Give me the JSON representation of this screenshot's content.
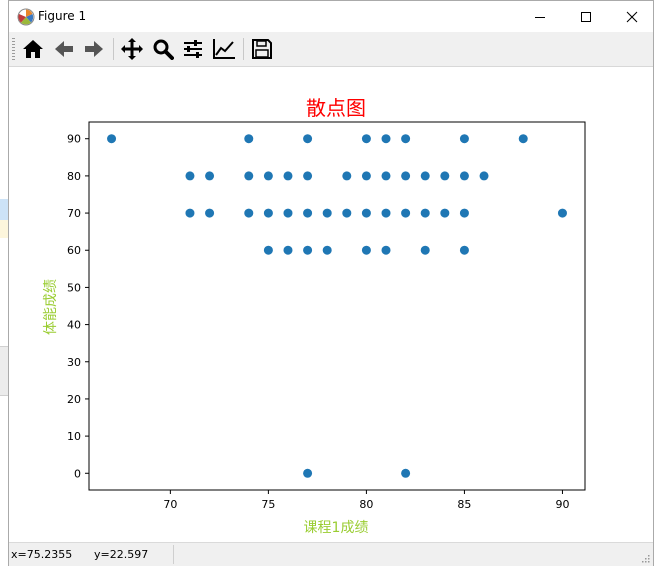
{
  "window": {
    "title": "Figure 1",
    "controls": {
      "minimize": "minimize",
      "maximize": "maximize",
      "close": "close"
    }
  },
  "toolbar": {
    "buttons": [
      {
        "name": "home",
        "icon": "home-icon"
      },
      {
        "name": "back",
        "icon": "arrow-left-icon"
      },
      {
        "name": "forward",
        "icon": "arrow-right-icon"
      },
      {
        "name": "pan",
        "icon": "move-icon"
      },
      {
        "name": "zoom",
        "icon": "magnifier-icon"
      },
      {
        "name": "configure-subplots",
        "icon": "sliders-icon"
      },
      {
        "name": "edit-axes",
        "icon": "line-chart-icon"
      },
      {
        "name": "save",
        "icon": "floppy-disk-icon"
      }
    ]
  },
  "statusbar": {
    "x_readout": "x=75.2355",
    "y_readout": "y=22.597"
  },
  "colors": {
    "title": "#ff0000",
    "axis_label": "#9acd32",
    "marker": "#1f77b4"
  },
  "chart_data": {
    "type": "scatter",
    "title": "散点图",
    "xlabel": "课程1成绩",
    "ylabel": "体能成绩",
    "xlim": [
      65.85,
      91.15
    ],
    "ylim": [
      -4.5,
      94.5
    ],
    "xticks": [
      "70",
      "75",
      "80",
      "85",
      "90"
    ],
    "yticks": [
      "0",
      "10",
      "20",
      "30",
      "40",
      "50",
      "60",
      "70",
      "80",
      "90"
    ],
    "grid": false,
    "series": [
      {
        "points": [
          [
            67,
            90
          ],
          [
            74,
            90
          ],
          [
            77,
            90
          ],
          [
            80,
            90
          ],
          [
            81,
            90
          ],
          [
            82,
            90
          ],
          [
            85,
            90
          ],
          [
            88,
            90
          ],
          [
            71,
            80
          ],
          [
            72,
            80
          ],
          [
            74,
            80
          ],
          [
            75,
            80
          ],
          [
            76,
            80
          ],
          [
            77,
            80
          ],
          [
            79,
            80
          ],
          [
            80,
            80
          ],
          [
            81,
            80
          ],
          [
            82,
            80
          ],
          [
            83,
            80
          ],
          [
            84,
            80
          ],
          [
            85,
            80
          ],
          [
            86,
            80
          ],
          [
            71,
            70
          ],
          [
            72,
            70
          ],
          [
            74,
            70
          ],
          [
            75,
            70
          ],
          [
            76,
            70
          ],
          [
            77,
            70
          ],
          [
            78,
            70
          ],
          [
            79,
            70
          ],
          [
            80,
            70
          ],
          [
            81,
            70
          ],
          [
            82,
            70
          ],
          [
            83,
            70
          ],
          [
            84,
            70
          ],
          [
            85,
            70
          ],
          [
            90,
            70
          ],
          [
            75,
            60
          ],
          [
            76,
            60
          ],
          [
            77,
            60
          ],
          [
            78,
            60
          ],
          [
            80,
            60
          ],
          [
            81,
            60
          ],
          [
            83,
            60
          ],
          [
            85,
            60
          ],
          [
            77,
            0
          ],
          [
            82,
            0
          ]
        ]
      }
    ]
  }
}
